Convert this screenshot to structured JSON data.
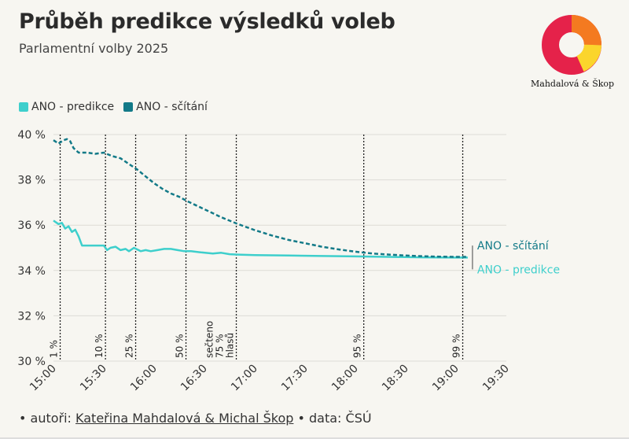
{
  "header": {
    "title": "Průběh predikce výsledků voleb",
    "subtitle": "Parlamentní volby 2025"
  },
  "logo": {
    "text": "Mahdalová & Škop",
    "icon": "donut-logo-icon"
  },
  "footer": {
    "prefix": "• autoři: ",
    "authors_link": "Kateřina Mahdalová & Michal Škop",
    "suffix": " • data: ČSÚ"
  },
  "chart_data": {
    "type": "line",
    "title": "Průběh predikce výsledků voleb",
    "subtitle": "Parlamentní volby 2025",
    "xlabel": "",
    "ylabel": "",
    "x_ticks": [
      "15:00",
      "15:30",
      "16:00",
      "16:30",
      "17:00",
      "17:30",
      "18:00",
      "18:30",
      "19:00",
      "19:30"
    ],
    "y_ticks": [
      "30 %",
      "32 %",
      "34 %",
      "36 %",
      "38 %",
      "40 %"
    ],
    "xlim_minutes_after_15h": [
      0,
      270
    ],
    "ylim": [
      30,
      40
    ],
    "grid": "horizontal",
    "legend_position": "top-left",
    "colors": {
      "predikce": "#3ecfcc",
      "scitani": "#137a88"
    },
    "series": [
      {
        "name": "ANO - predikce",
        "end_label": "ANO - predikce",
        "style": "solid",
        "color": "#3ecfcc",
        "points": [
          [
            0,
            36.2
          ],
          [
            3,
            36.05
          ],
          [
            5,
            36.1
          ],
          [
            7,
            35.85
          ],
          [
            9,
            35.95
          ],
          [
            11,
            35.7
          ],
          [
            13,
            35.8
          ],
          [
            15,
            35.5
          ],
          [
            17,
            35.1
          ],
          [
            20,
            35.1
          ],
          [
            25,
            35.1
          ],
          [
            30,
            35.1
          ],
          [
            32,
            34.9
          ],
          [
            34,
            35.0
          ],
          [
            37,
            35.05
          ],
          [
            40,
            34.9
          ],
          [
            43,
            34.95
          ],
          [
            45,
            34.85
          ],
          [
            48,
            35.0
          ],
          [
            52,
            34.85
          ],
          [
            55,
            34.9
          ],
          [
            58,
            34.85
          ],
          [
            62,
            34.9
          ],
          [
            66,
            34.95
          ],
          [
            70,
            34.95
          ],
          [
            74,
            34.9
          ],
          [
            78,
            34.85
          ],
          [
            82,
            34.85
          ],
          [
            88,
            34.8
          ],
          [
            95,
            34.75
          ],
          [
            100,
            34.78
          ],
          [
            105,
            34.72
          ],
          [
            110,
            34.7
          ],
          [
            120,
            34.68
          ],
          [
            140,
            34.66
          ],
          [
            160,
            34.64
          ],
          [
            180,
            34.62
          ],
          [
            200,
            34.6
          ],
          [
            220,
            34.58
          ],
          [
            240,
            34.57
          ],
          [
            247,
            34.57
          ]
        ]
      },
      {
        "name": "ANO - sčítání",
        "end_label": "ANO - sčítání",
        "style": "dashed",
        "color": "#137a88",
        "points": [
          [
            0,
            39.75
          ],
          [
            3,
            39.6
          ],
          [
            6,
            39.75
          ],
          [
            8,
            39.8
          ],
          [
            10,
            39.7
          ],
          [
            12,
            39.4
          ],
          [
            15,
            39.2
          ],
          [
            20,
            39.2
          ],
          [
            25,
            39.15
          ],
          [
            30,
            39.2
          ],
          [
            35,
            39.05
          ],
          [
            40,
            38.95
          ],
          [
            46,
            38.65
          ],
          [
            50,
            38.45
          ],
          [
            55,
            38.15
          ],
          [
            60,
            37.85
          ],
          [
            65,
            37.6
          ],
          [
            70,
            37.4
          ],
          [
            75,
            37.25
          ],
          [
            80,
            37.05
          ],
          [
            90,
            36.7
          ],
          [
            100,
            36.35
          ],
          [
            110,
            36.05
          ],
          [
            120,
            35.78
          ],
          [
            130,
            35.55
          ],
          [
            140,
            35.35
          ],
          [
            150,
            35.2
          ],
          [
            160,
            35.05
          ],
          [
            170,
            34.93
          ],
          [
            180,
            34.83
          ],
          [
            190,
            34.75
          ],
          [
            200,
            34.7
          ],
          [
            210,
            34.66
          ],
          [
            220,
            34.63
          ],
          [
            230,
            34.61
          ],
          [
            240,
            34.6
          ],
          [
            247,
            34.6
          ]
        ]
      }
    ],
    "vlines": [
      {
        "minute": 4,
        "label": "1 %"
      },
      {
        "minute": 31,
        "label": "10 %"
      },
      {
        "minute": 49,
        "label": "25 %"
      },
      {
        "minute": 79,
        "label": "50 %"
      },
      {
        "minute": 109,
        "label": "sečteno\n75 %\nhlasů"
      },
      {
        "minute": 185,
        "label": "95 %"
      },
      {
        "minute": 244,
        "label": "99 %"
      }
    ]
  }
}
